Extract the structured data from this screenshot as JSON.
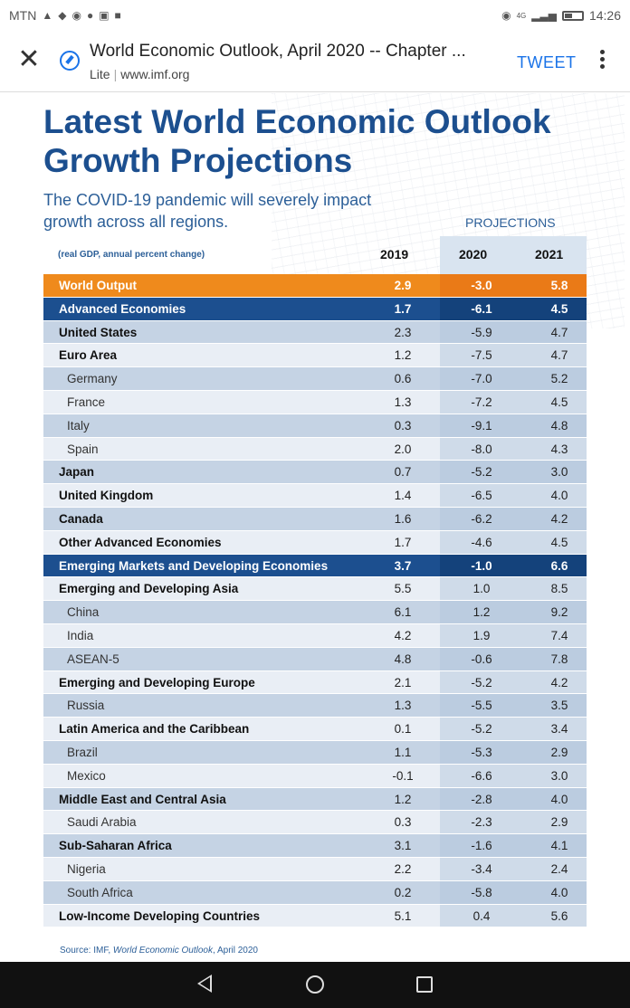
{
  "status_bar": {
    "carrier": "MTN",
    "network": "4G",
    "time": "14:26",
    "icons": [
      "notification-icon",
      "twitter-icon",
      "chrome-icon",
      "alarm-icon",
      "flipboard-icon",
      "gallery-icon",
      "eye-icon",
      "signal-icon",
      "battery-icon"
    ]
  },
  "browser": {
    "page_title": "World Economic Outlook, April 2020 -- Chapter ...",
    "mode": "Lite",
    "domain": "www.imf.org",
    "tweet_label": "TWEET"
  },
  "infographic": {
    "title": "Latest World Economic Outlook Growth Projections",
    "subtitle": "The COVID-19 pandemic will severely impact growth across all regions.",
    "projections_label": "PROJECTIONS",
    "unit_label": "(real GDP, annual percent change)",
    "years": [
      "2019",
      "2020",
      "2021"
    ],
    "source_prefix": "Source: IMF, ",
    "source_title": "World Economic Outlook",
    "source_suffix": ", April 2020",
    "colors": {
      "title": "#1c4f8f",
      "highlight_orange": "#ef8a1c",
      "highlight_blue": "#1c4f8f"
    }
  },
  "table": {
    "rows": [
      {
        "name": "World Output",
        "v2019": "2.9",
        "v2020": "-3.0",
        "v2021": "5.8"
      },
      {
        "name": "Advanced Economies",
        "v2019": "1.7",
        "v2020": "-6.1",
        "v2021": "4.5"
      },
      {
        "name": "United States",
        "v2019": "2.3",
        "v2020": "-5.9",
        "v2021": "4.7"
      },
      {
        "name": "Euro Area",
        "v2019": "1.2",
        "v2020": "-7.5",
        "v2021": "4.7"
      },
      {
        "name": "Germany",
        "v2019": "0.6",
        "v2020": "-7.0",
        "v2021": "5.2"
      },
      {
        "name": "France",
        "v2019": "1.3",
        "v2020": "-7.2",
        "v2021": "4.5"
      },
      {
        "name": "Italy",
        "v2019": "0.3",
        "v2020": "-9.1",
        "v2021": "4.8"
      },
      {
        "name": "Spain",
        "v2019": "2.0",
        "v2020": "-8.0",
        "v2021": "4.3"
      },
      {
        "name": "Japan",
        "v2019": "0.7",
        "v2020": "-5.2",
        "v2021": "3.0"
      },
      {
        "name": "United Kingdom",
        "v2019": "1.4",
        "v2020": "-6.5",
        "v2021": "4.0"
      },
      {
        "name": "Canada",
        "v2019": "1.6",
        "v2020": "-6.2",
        "v2021": "4.2"
      },
      {
        "name": "Other Advanced Economies",
        "v2019": "1.7",
        "v2020": "-4.6",
        "v2021": "4.5"
      },
      {
        "name": "Emerging Markets and Developing Economies",
        "v2019": "3.7",
        "v2020": "-1.0",
        "v2021": "6.6"
      },
      {
        "name": "Emerging and Developing Asia",
        "v2019": "5.5",
        "v2020": "1.0",
        "v2021": "8.5"
      },
      {
        "name": "China",
        "v2019": "6.1",
        "v2020": "1.2",
        "v2021": "9.2"
      },
      {
        "name": "India",
        "v2019": "4.2",
        "v2020": "1.9",
        "v2021": "7.4"
      },
      {
        "name": "ASEAN-5",
        "v2019": "4.8",
        "v2020": "-0.6",
        "v2021": "7.8"
      },
      {
        "name": "Emerging and Developing Europe",
        "v2019": "2.1",
        "v2020": "-5.2",
        "v2021": "4.2"
      },
      {
        "name": "Russia",
        "v2019": "1.3",
        "v2020": "-5.5",
        "v2021": "3.5"
      },
      {
        "name": "Latin America and the Caribbean",
        "v2019": "0.1",
        "v2020": "-5.2",
        "v2021": "3.4"
      },
      {
        "name": "Brazil",
        "v2019": "1.1",
        "v2020": "-5.3",
        "v2021": "2.9"
      },
      {
        "name": "Mexico",
        "v2019": "-0.1",
        "v2020": "-6.6",
        "v2021": "3.0"
      },
      {
        "name": "Middle East and Central Asia",
        "v2019": "1.2",
        "v2020": "-2.8",
        "v2021": "4.0"
      },
      {
        "name": "Saudi Arabia",
        "v2019": "0.3",
        "v2020": "-2.3",
        "v2021": "2.9"
      },
      {
        "name": "Sub-Saharan Africa",
        "v2019": "3.1",
        "v2020": "-1.6",
        "v2021": "4.1"
      },
      {
        "name": "Nigeria",
        "v2019": "2.2",
        "v2020": "-3.4",
        "v2021": "2.4"
      },
      {
        "name": "South Africa",
        "v2019": "0.2",
        "v2020": "-5.8",
        "v2021": "4.0"
      },
      {
        "name": "Low-Income Developing Countries",
        "v2019": "5.1",
        "v2020": "0.4",
        "v2021": "5.6"
      }
    ]
  }
}
